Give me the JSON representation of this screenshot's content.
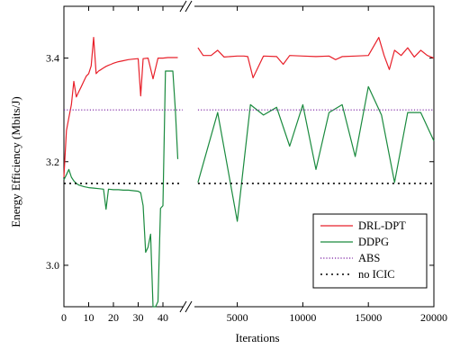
{
  "chart_data": {
    "type": "line",
    "title": "",
    "xlabel": "Iterations",
    "ylabel": "Energy Efficiency (Mbits/J)",
    "ylim": [
      2.92,
      3.5
    ],
    "yticks": [
      3.0,
      3.2,
      3.4
    ],
    "ytick_labels": [
      "3.0",
      "3.2",
      "3.4"
    ],
    "x_axis_break": true,
    "x_segments": [
      {
        "range": [
          0,
          48
        ],
        "ticks": [
          0,
          10,
          20,
          30,
          40
        ],
        "tick_labels": [
          "0",
          "10",
          "20",
          "30",
          "40"
        ]
      },
      {
        "range": [
          1800,
          20000
        ],
        "ticks": [
          5000,
          10000,
          15000,
          20000
        ],
        "tick_labels": [
          "5000",
          "10000",
          "15000",
          "20000"
        ]
      }
    ],
    "grid": false,
    "legend": {
      "position": "lower-right"
    },
    "series": [
      {
        "name": "DRL-DPT",
        "color": "#e8202a",
        "style": "solid",
        "segments": [
          {
            "x": [
              0,
              1,
              2,
              3,
              4,
              5,
              6,
              7,
              8,
              9,
              10,
              11,
              12,
              13,
              14,
              15,
              16,
              17,
              18,
              19,
              20,
              22,
              24,
              26,
              28,
              30,
              31,
              32,
              34,
              36,
              38,
              40,
              42,
              44,
              46
            ],
            "y": [
              3.17,
              3.26,
              3.285,
              3.31,
              3.355,
              3.325,
              3.335,
              3.345,
              3.355,
              3.365,
              3.37,
              3.385,
              3.44,
              3.37,
              3.375,
              3.378,
              3.381,
              3.384,
              3.386,
              3.388,
              3.39,
              3.393,
              3.395,
              3.397,
              3.398,
              3.399,
              3.327,
              3.399,
              3.4,
              3.36,
              3.4,
              3.4,
              3.401,
              3.401,
              3.401
            ]
          },
          {
            "x": [
              2000,
              2400,
              3000,
              3500,
              4000,
              5000,
              5500,
              5800,
              6200,
              7000,
              8000,
              8500,
              9000,
              10000,
              11000,
              12000,
              12500,
              13000,
              14000,
              15000,
              15800,
              16200,
              16600,
              17000,
              17500,
              18000,
              18500,
              19000,
              19500,
              20000
            ],
            "y": [
              3.42,
              3.405,
              3.405,
              3.415,
              3.402,
              3.404,
              3.404,
              3.403,
              3.362,
              3.404,
              3.403,
              3.388,
              3.405,
              3.404,
              3.403,
              3.404,
              3.397,
              3.403,
              3.404,
              3.405,
              3.44,
              3.405,
              3.378,
              3.415,
              3.405,
              3.42,
              3.402,
              3.415,
              3.405,
              3.4
            ]
          }
        ]
      },
      {
        "name": "DDPG",
        "color": "#1a8a3e",
        "style": "solid",
        "segments": [
          {
            "x": [
              0,
              1,
              2,
              3,
              4,
              5,
              6,
              8,
              10,
              12,
              14,
              16,
              17,
              18,
              20,
              22,
              24,
              26,
              28,
              30,
              31,
              32,
              33,
              34,
              35,
              36,
              37,
              38,
              39,
              40,
              41,
              44,
              45,
              46
            ],
            "y": [
              3.165,
              3.175,
              3.185,
              3.17,
              3.163,
              3.158,
              3.155,
              3.152,
              3.15,
              3.149,
              3.148,
              3.147,
              3.108,
              3.147,
              3.146,
              3.146,
              3.145,
              3.145,
              3.144,
              3.143,
              3.14,
              3.115,
              3.025,
              3.035,
              3.06,
              2.92,
              2.92,
              2.93,
              3.11,
              3.115,
              3.375,
              3.375,
              3.3,
              3.205
            ]
          },
          {
            "x": [
              2000,
              3500,
              5000,
              6000,
              7000,
              8000,
              9000,
              10000,
              11000,
              12000,
              13000,
              14000,
              15000,
              16000,
              17000,
              18000,
              19000,
              20000
            ],
            "y": [
              3.16,
              3.295,
              3.085,
              3.31,
              3.29,
              3.305,
              3.23,
              3.31,
              3.185,
              3.295,
              3.31,
              3.21,
              3.345,
              3.29,
              3.16,
              3.295,
              3.295,
              3.24
            ]
          }
        ]
      },
      {
        "name": "ABS",
        "color": "#7a1fa2",
        "style": "dotted",
        "segments": [
          {
            "x": [
              0,
              48
            ],
            "y": [
              3.3,
              3.3
            ]
          },
          {
            "x": [
              2000,
              20000
            ],
            "y": [
              3.3,
              3.3
            ]
          }
        ]
      },
      {
        "name": "no ICIC",
        "color": "#000000",
        "style": "dotted",
        "segments": [
          {
            "x": [
              0,
              48
            ],
            "y": [
              3.158,
              3.158
            ]
          },
          {
            "x": [
              2000,
              20000
            ],
            "y": [
              3.158,
              3.158
            ]
          }
        ]
      }
    ]
  }
}
